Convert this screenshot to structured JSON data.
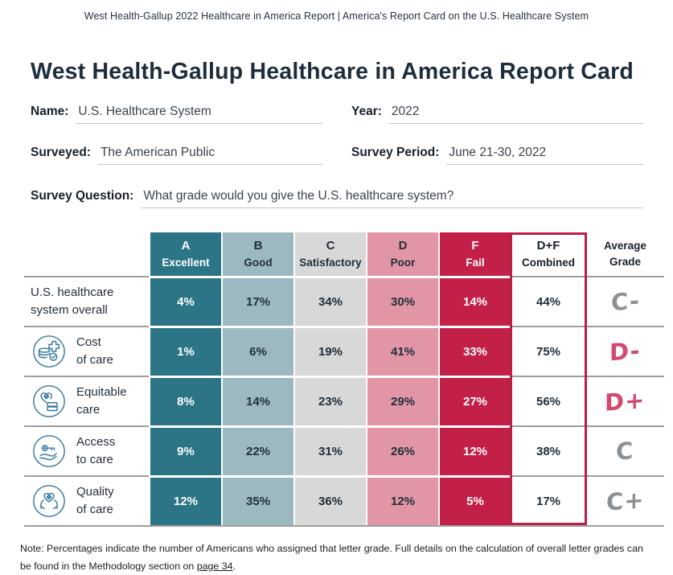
{
  "meta_header": "West Health-Gallup 2022 Healthcare in America Report  |  America's Report Card on the U.S. Healthcare System",
  "title": "West Health-Gallup Healthcare in America Report Card",
  "form": {
    "name_label": "Name:",
    "name_value": "U.S. Healthcare System",
    "year_label": "Year:",
    "year_value": "2022",
    "surveyed_label": "Surveyed:",
    "surveyed_value": "The American Public",
    "period_label": "Survey Period:",
    "period_value": "June 21-30, 2022",
    "question_label": "Survey Question:",
    "question_value": "What grade would you give the U.S. healthcare system?"
  },
  "table": {
    "columns": [
      {
        "letter": "A",
        "label": "Excellent",
        "bg": "#2b7587",
        "fg": "#ffffff"
      },
      {
        "letter": "B",
        "label": "Good",
        "bg": "#9cb9c1",
        "fg": "#212f3c"
      },
      {
        "letter": "C",
        "label": "Satisfactory",
        "bg": "#d8d8d8",
        "fg": "#212f3c"
      },
      {
        "letter": "D",
        "label": "Poor",
        "bg": "#e295a4",
        "fg": "#212f3c"
      },
      {
        "letter": "F",
        "label": "Fail",
        "bg": "#c32048",
        "fg": "#ffffff"
      }
    ],
    "combined_header": {
      "line1": "D+F",
      "line2": "Combined"
    },
    "average_header": {
      "line1": "Average",
      "line2": "Grade"
    },
    "rows": [
      {
        "label_lines": [
          "U.S. healthcare",
          "system overall"
        ],
        "icon": null,
        "values": [
          "4%",
          "17%",
          "34%",
          "30%",
          "14%"
        ],
        "combined": "44%",
        "grade": "C-",
        "grade_color": "gray"
      },
      {
        "label_lines": [
          "Cost",
          "of care"
        ],
        "icon": "cost-of-care-icon",
        "values": [
          "1%",
          "6%",
          "19%",
          "41%",
          "33%"
        ],
        "combined": "75%",
        "grade": "D-",
        "grade_color": "pink"
      },
      {
        "label_lines": [
          "Equitable",
          "care"
        ],
        "icon": "equitable-care-icon",
        "values": [
          "8%",
          "14%",
          "23%",
          "29%",
          "27%"
        ],
        "combined": "56%",
        "grade": "D+",
        "grade_color": "pink"
      },
      {
        "label_lines": [
          "Access",
          "to care"
        ],
        "icon": "access-to-care-icon",
        "values": [
          "9%",
          "22%",
          "31%",
          "26%",
          "12%"
        ],
        "combined": "38%",
        "grade": "C",
        "grade_color": "gray"
      },
      {
        "label_lines": [
          "Quality",
          "of care"
        ],
        "icon": "quality-of-care-icon",
        "values": [
          "12%",
          "35%",
          "36%",
          "12%",
          "5%"
        ],
        "combined": "17%",
        "grade": "C+",
        "grade_color": "gray"
      }
    ]
  },
  "note": {
    "text_before": "Note: Percentages indicate the number of Americans who assigned that letter grade. Full details on the calculation of overall letter grades can be found in the Methodology section on ",
    "link": "page 34",
    "text_after": "."
  },
  "colors": {
    "accent_teal": "#2b7587",
    "accent_crimson": "#c32048",
    "combined_border": "#ba1f47",
    "grade_gray": "#8a9094",
    "grade_pink": "#d4496d",
    "icon_blue": "#35789f"
  }
}
